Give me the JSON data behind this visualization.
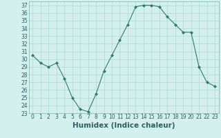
{
  "x": [
    0,
    1,
    2,
    3,
    4,
    5,
    6,
    7,
    8,
    9,
    10,
    11,
    12,
    13,
    14,
    15,
    16,
    17,
    18,
    19,
    20,
    21,
    22,
    23
  ],
  "y": [
    30.5,
    29.5,
    29.0,
    29.5,
    27.5,
    25.0,
    23.5,
    23.2,
    25.5,
    28.5,
    30.5,
    32.5,
    34.5,
    36.8,
    37.0,
    37.0,
    36.8,
    35.5,
    34.5,
    33.5,
    33.5,
    29.0,
    27.0,
    26.5
  ],
  "xlabel": "Humidex (Indice chaleur)",
  "ylim": [
    23,
    37.5
  ],
  "xlim": [
    -0.5,
    23.5
  ],
  "yticks": [
    23,
    24,
    25,
    26,
    27,
    28,
    29,
    30,
    31,
    32,
    33,
    34,
    35,
    36,
    37
  ],
  "xticks": [
    0,
    1,
    2,
    3,
    4,
    5,
    6,
    7,
    8,
    9,
    10,
    11,
    12,
    13,
    14,
    15,
    16,
    17,
    18,
    19,
    20,
    21,
    22,
    23
  ],
  "line_color": "#2d7d6e",
  "bg_color": "#d4f0ee",
  "grid_color": "#b0d8d0",
  "tick_fontsize": 5.5,
  "xlabel_fontsize": 7.5
}
